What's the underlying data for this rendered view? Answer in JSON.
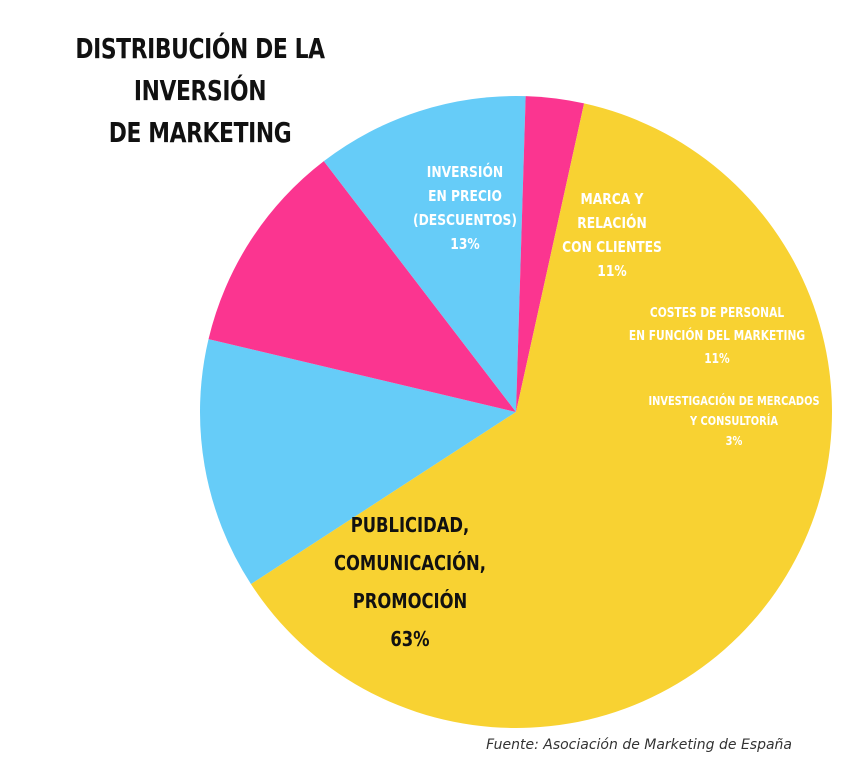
{
  "title": {
    "line1": "DISTRIBUCIÓN DE LA INVERSIÓN",
    "line2": "DE MARKETING"
  },
  "source": "Fuente: Asociación de Marketing de España",
  "chart_data": {
    "type": "pie",
    "title": "DISTRIBUCIÓN DE LA INVERSIÓN DE MARKETING",
    "start_angle_deg": 237,
    "direction": "clockwise",
    "slices": [
      {
        "label_lines": [
          "INVERSIÓN",
          "EN PRECIO",
          "(DESCUENTOS)"
        ],
        "percent_label": "13%",
        "value": 13,
        "color": "#66ccf8",
        "text_color": "#ffffff"
      },
      {
        "label_lines": [
          "MARCA Y",
          "RELACIÓN",
          "CON CLIENTES"
        ],
        "percent_label": "11%",
        "value": 11,
        "color": "#fb3590",
        "text_color": "#ffffff"
      },
      {
        "label_lines": [
          "COSTES DE PERSONAL",
          "EN FUNCIÓN DEL MARKETING"
        ],
        "percent_label": "11%",
        "value": 11,
        "color": "#66ccf8",
        "text_color": "#ffffff"
      },
      {
        "label_lines": [
          "INVESTIGACIÓN DE MERCADOS",
          "Y CONSULTORÍA"
        ],
        "percent_label": "3%",
        "value": 3,
        "color": "#fb3590",
        "text_color": "#ffffff"
      },
      {
        "label_lines": [
          "PUBLICIDAD,",
          "COMUNICACIÓN,",
          "PROMOCIÓN"
        ],
        "percent_label": "63%",
        "value": 63,
        "color": "#f8d232",
        "text_color": "#111111"
      }
    ]
  }
}
